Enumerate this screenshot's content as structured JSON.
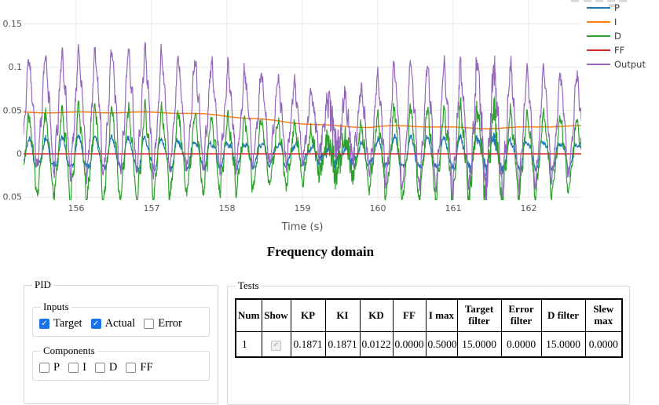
{
  "heading": "Frequency domain",
  "chart_data": {
    "type": "line",
    "title": "",
    "xlabel": "Time (s)",
    "ylabel": "",
    "x_tick_values": [
      156,
      157,
      158,
      159,
      160,
      161,
      162
    ],
    "x_tick_labels": [
      "156",
      "157",
      "158",
      "159",
      "160",
      "161",
      "162"
    ],
    "y_tick_values": [
      0.15,
      0.1,
      0.05,
      0,
      -0.05
    ],
    "y_tick_labels": [
      "0.15",
      "0.1",
      "0.05",
      "0",
      "0.05"
    ],
    "x_range": [
      155.3,
      162.7
    ],
    "y_range": [
      -0.055,
      0.177
    ],
    "grid": true,
    "legend_position": "right",
    "oscillation_hz": 4.54,
    "series": [
      {
        "name": "P",
        "color": "#1f77b4",
        "role": "p",
        "amplitude": 0.015,
        "mean": 0
      },
      {
        "name": "I",
        "color": "#ff7f0e",
        "role": "i",
        "start_value": 0.0478,
        "end_value": 0.0308,
        "decline_start": 157.05,
        "decline_end": 159.95
      },
      {
        "name": "D",
        "color": "#2ca02c",
        "role": "d",
        "amplitude": 0.04,
        "mean": 0
      },
      {
        "name": "FF",
        "color": "#d62728",
        "role": "ff",
        "value": 0
      },
      {
        "name": "Output",
        "color": "#9467bd",
        "role": "output",
        "amplitude": 0.054,
        "peak": 0.115,
        "trough": -0.03
      }
    ]
  },
  "pid": {
    "legend": "PID",
    "inputs": {
      "legend": "Inputs",
      "options": [
        {
          "label": "Target",
          "checked": true
        },
        {
          "label": "Actual",
          "checked": true
        },
        {
          "label": "Error",
          "checked": false
        }
      ]
    },
    "components": {
      "legend": "Components",
      "options": [
        {
          "label": "P",
          "checked": false
        },
        {
          "label": "I",
          "checked": false
        },
        {
          "label": "D",
          "checked": false
        },
        {
          "label": "FF",
          "checked": false
        }
      ]
    }
  },
  "tests": {
    "legend": "Tests",
    "columns": [
      "Num",
      "Show",
      "KP",
      "KI",
      "KD",
      "FF",
      "I max",
      "Target filter",
      "Error filter",
      "D filter",
      "Slew max"
    ],
    "rows": [
      {
        "num": "1",
        "show_checked": true,
        "show_disabled": true,
        "values": [
          "0.1871",
          "0.1871",
          "0.0122",
          "0.0000",
          "0.5000",
          "15.0000",
          "0.0000",
          "15.0000",
          "0.0000"
        ]
      }
    ]
  }
}
